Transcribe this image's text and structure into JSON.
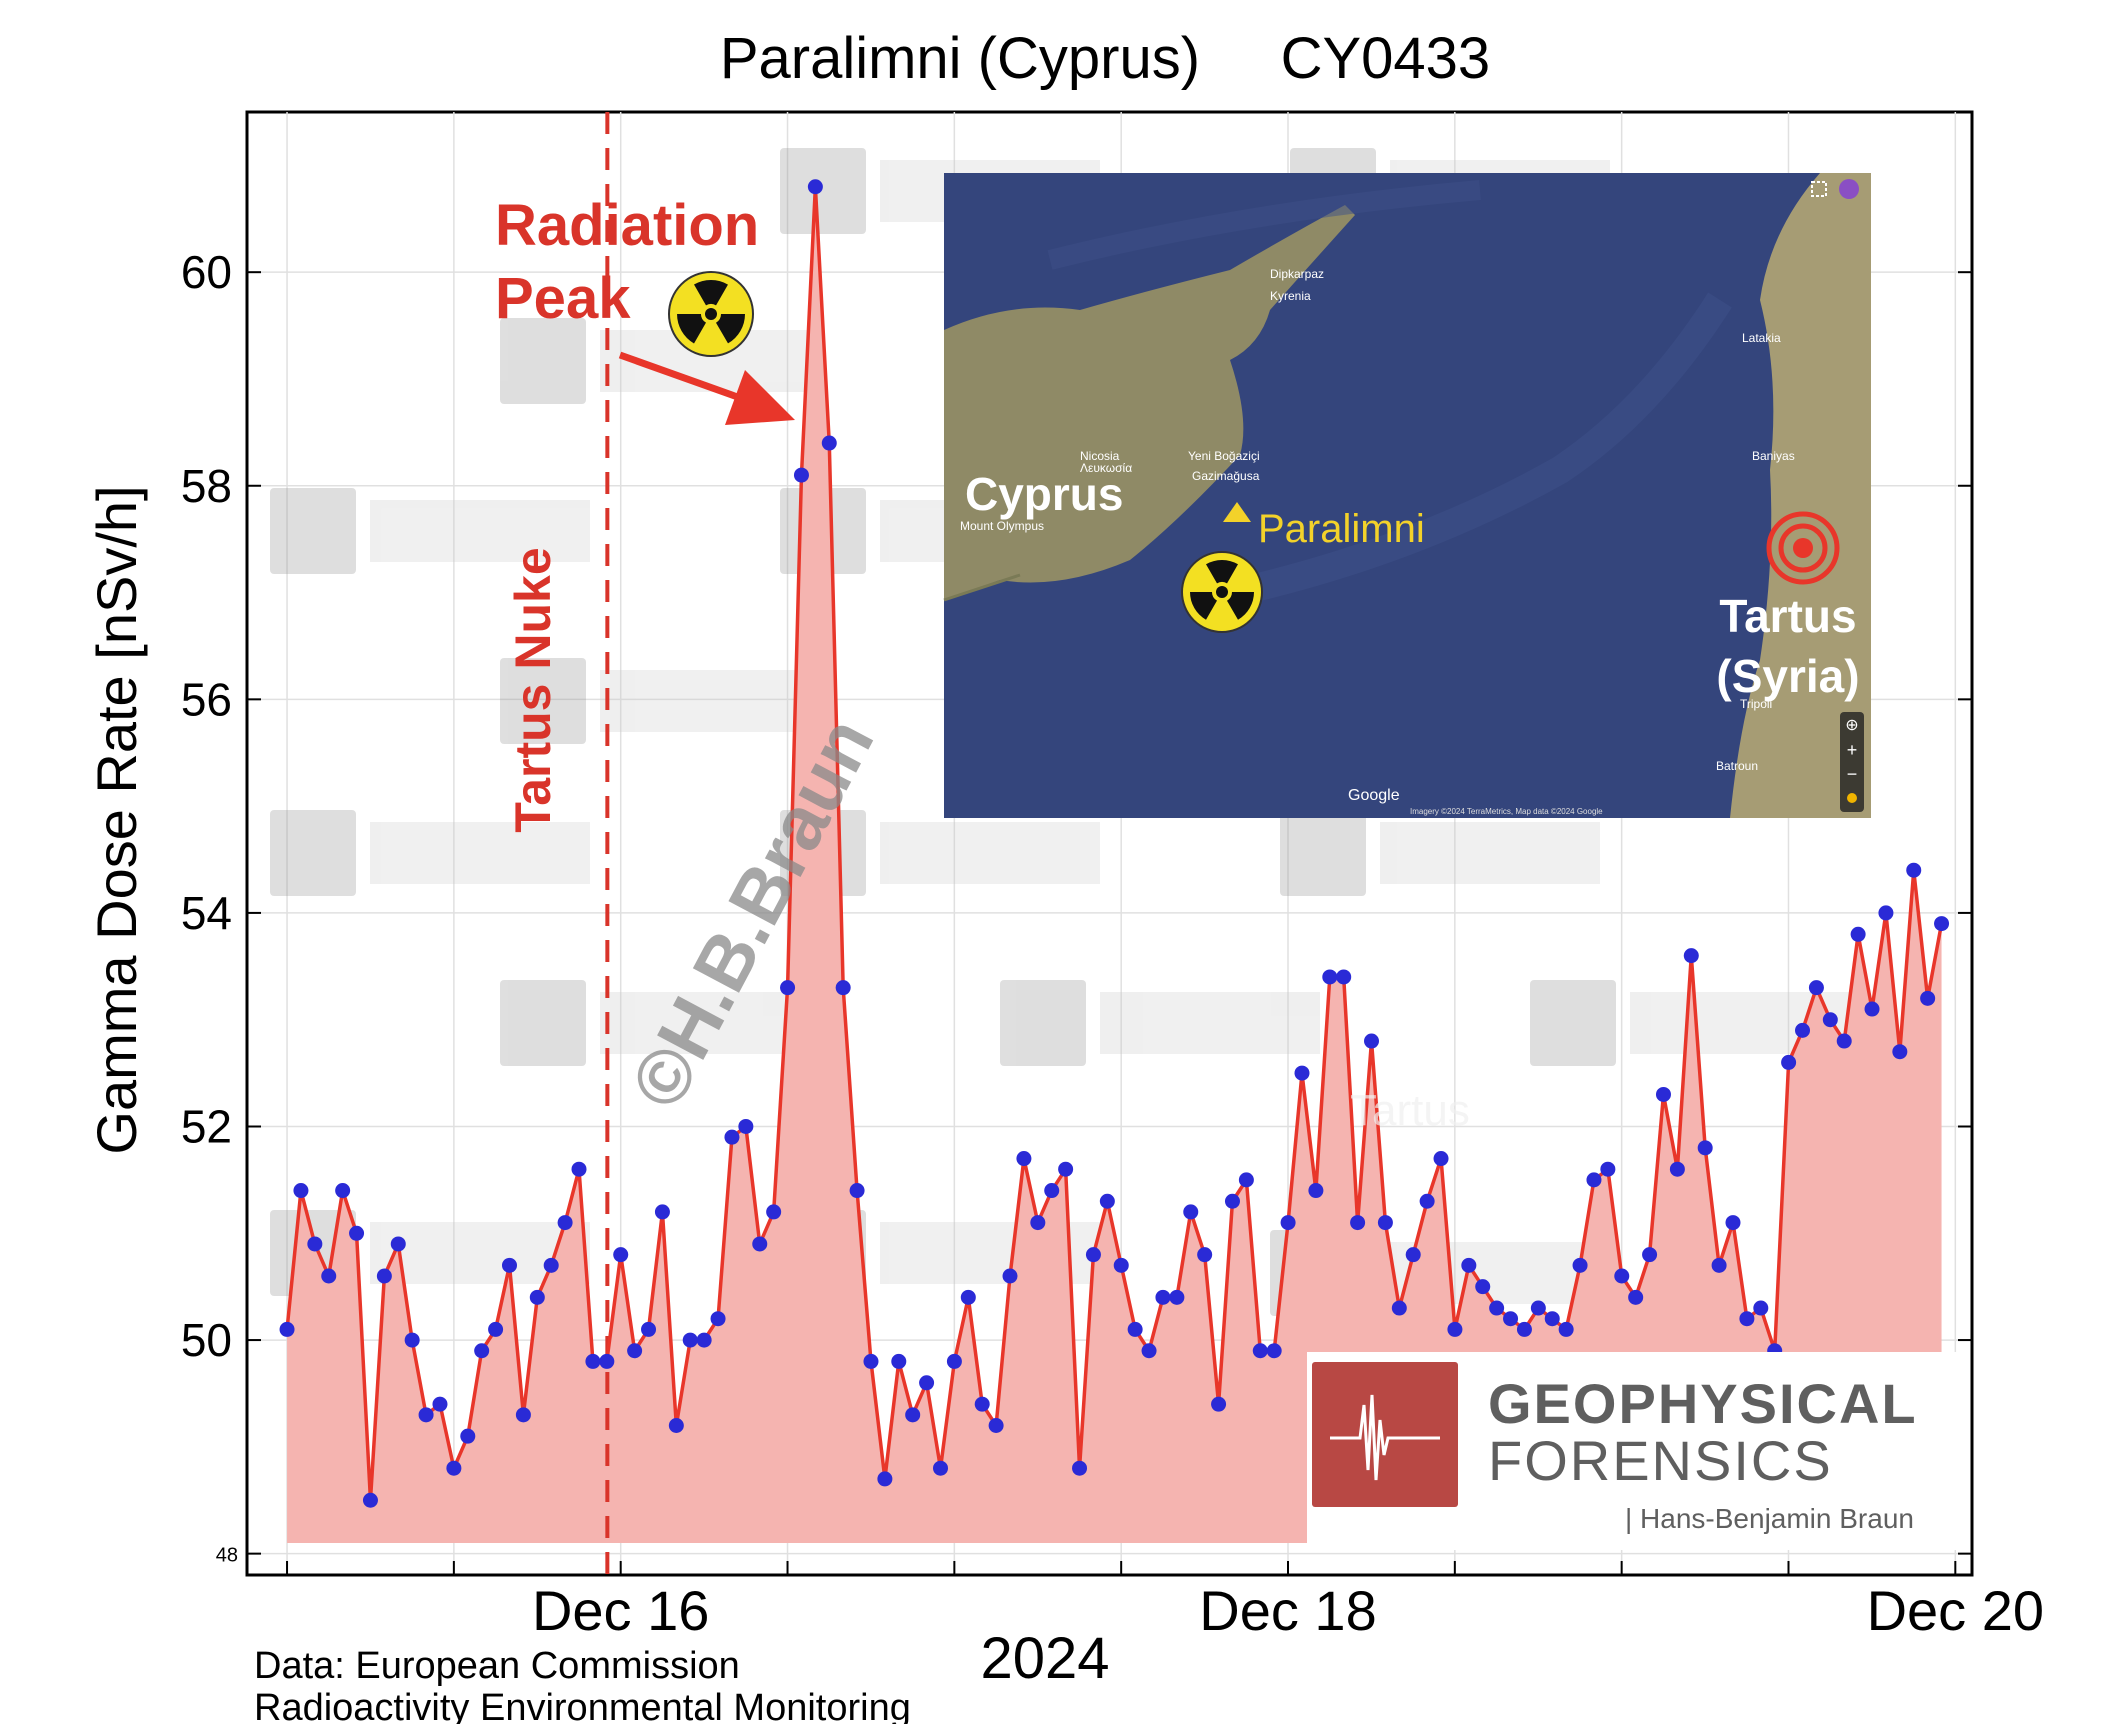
{
  "chart_data": {
    "type": "area",
    "title": "Paralimni (Cyprus)     CY0433",
    "xlabel": "2024",
    "ylabel": "Gamma Dose Rate [nSv/h]",
    "ylim": [
      47.8,
      61.5
    ],
    "xlim": [
      -0.12,
      5.05
    ],
    "y_ticks": [
      {
        "value": 60,
        "label": "60"
      },
      {
        "value": 58,
        "label": "58"
      },
      {
        "value": 56,
        "label": "56"
      },
      {
        "value": 54,
        "label": "54"
      },
      {
        "value": 52,
        "label": "52"
      },
      {
        "value": 50,
        "label": "50"
      },
      {
        "value": 48,
        "label": "48"
      }
    ],
    "x_ticks": [
      {
        "value": 1,
        "label": "Dec 16"
      },
      {
        "value": 3,
        "label": "Dec 18"
      },
      {
        "value": 5,
        "label": "Dec 20"
      }
    ],
    "minor_x_ticks": [
      0,
      0.5,
      1.5,
      2,
      2.5,
      3.5,
      4,
      4.5
    ],
    "grid": true,
    "series": [
      {
        "name": "Gamma dose rate",
        "color": "#e8362a",
        "fill": "#f5b4b0",
        "marker_color": "#2a2ad6",
        "x_start": 0,
        "x_step": 0.04167,
        "values": [
          50.1,
          51.4,
          50.9,
          50.6,
          51.4,
          51.0,
          48.5,
          50.6,
          50.9,
          50.0,
          49.3,
          49.4,
          48.8,
          49.1,
          49.9,
          50.1,
          50.7,
          49.3,
          50.4,
          50.7,
          51.1,
          51.6,
          49.8,
          49.8,
          50.8,
          49.9,
          50.1,
          51.2,
          49.2,
          50.0,
          50.0,
          50.2,
          51.9,
          52.0,
          50.9,
          51.2,
          53.3,
          58.1,
          60.8,
          58.4,
          53.3,
          51.4,
          49.8,
          48.7,
          49.8,
          49.3,
          49.6,
          48.8,
          49.8,
          50.4,
          49.4,
          49.2,
          50.6,
          51.7,
          51.1,
          51.4,
          51.6,
          48.8,
          50.8,
          51.3,
          50.7,
          50.1,
          49.9,
          50.4,
          50.4,
          51.2,
          50.8,
          49.4,
          51.3,
          51.5,
          49.9,
          49.9,
          51.1,
          52.5,
          51.4,
          53.4,
          53.4,
          51.1,
          52.8,
          51.1,
          50.3,
          50.8,
          51.3,
          51.7,
          50.1,
          50.7,
          50.5,
          50.3,
          50.2,
          50.1,
          50.3,
          50.2,
          50.1,
          50.7,
          51.5,
          51.6,
          50.6,
          50.4,
          50.8,
          52.3,
          51.6,
          53.6,
          51.8,
          50.7,
          51.1,
          50.2,
          50.3,
          49.9,
          52.6,
          52.9,
          53.3,
          53.0,
          52.8,
          53.8,
          53.1,
          54.0,
          52.7,
          54.4,
          53.2,
          53.9
        ]
      }
    ],
    "annotations": {
      "event_line": {
        "x": 0.96,
        "label": "Tartus Nuke"
      },
      "peak_label_line1": "Radiation",
      "peak_label_line2": "Peak",
      "peak_x": 1.58,
      "peak_y": 60.8,
      "faint_label": "Tartus",
      "copyright": "©H.B.Braun"
    },
    "inset_map": {
      "labels": {
        "cyprus": "Cyprus",
        "paralimni": "Paralimni",
        "tartus_line1": "Tartus",
        "tartus_line2": "(Syria)",
        "provider": "Google",
        "attribution": "Imagery ©2024 TerraMetrics, Map data ©2024 Google",
        "places": [
          "Nicosia",
          "Λευκωσία",
          "Mount Olympus",
          "Latakia",
          "Baniyas",
          "Tripoli",
          "Batroun",
          "Kyrenia",
          "Yeni Boğaziçi",
          "Gazimağusa",
          "Dipkarpaz"
        ]
      }
    },
    "footnote_line1": "Data: European Commission",
    "footnote_line2": "Radioactivity Environmental Monitoring",
    "logo": {
      "line1": "GEOPHYSICAL",
      "line2": "FORENSICS",
      "line3": "| Hans-Benjamin Braun"
    },
    "colors": {
      "line": "#e8362a",
      "fill": "#f5b4b0",
      "marker": "#2a2ad6",
      "annotation": "#d9342a",
      "grid": "#e0e0e0",
      "logo_red": "#b84844",
      "logo_gray": "#5f5f5f",
      "radiation_yellow": "#f3e022"
    }
  }
}
